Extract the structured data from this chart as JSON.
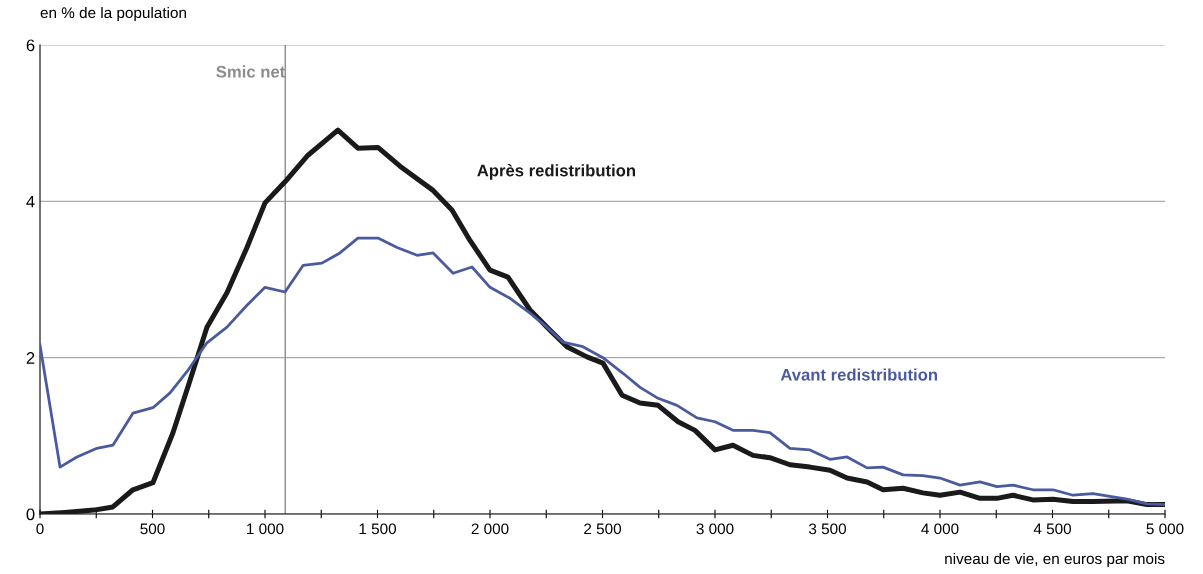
{
  "chart_data": {
    "type": "line",
    "ylabel": "en % de la population",
    "xlabel": "niveau de vie, en euros par mois",
    "xlim": [
      0,
      5000
    ],
    "ylim": [
      0,
      6
    ],
    "xticks": [
      0,
      {
        "value": 250,
        "label": null
      },
      500,
      {
        "value": 750,
        "label": null
      },
      {
        "value": 1000,
        "label": "1 000"
      },
      {
        "value": 1250,
        "label": null
      },
      {
        "value": 1500,
        "label": "1 500"
      },
      {
        "value": 1750,
        "label": null
      },
      {
        "value": 2000,
        "label": "2 000"
      },
      {
        "value": 2250,
        "label": null
      },
      {
        "value": 2500,
        "label": "2 500"
      },
      {
        "value": 2750,
        "label": null
      },
      {
        "value": 3000,
        "label": "3 000"
      },
      {
        "value": 3250,
        "label": null
      },
      {
        "value": 3500,
        "label": "3 500"
      },
      {
        "value": 3750,
        "label": null
      },
      {
        "value": 4000,
        "label": "4 000"
      },
      {
        "value": 4250,
        "label": null
      },
      {
        "value": 4500,
        "label": "4 500"
      },
      {
        "value": 4750,
        "label": null
      },
      {
        "value": 5000,
        "label": "5 000"
      }
    ],
    "yticks": [
      0,
      2,
      4,
      6
    ],
    "grid": "y",
    "legend": false,
    "marker": "none",
    "line_style": "solid",
    "ref_lines": [
      {
        "axis": "x",
        "value": 1090,
        "label": "Smic net",
        "color": "#8c8c8c"
      }
    ],
    "series": [
      {
        "name": "Après redistribution",
        "color": "#1a1a1a",
        "x": [
          0,
          110,
          240,
          324,
          413,
          502,
          591,
          667,
          742,
          831,
          920,
          1000,
          1089,
          1191,
          1324,
          1413,
          1502,
          1600,
          1747,
          1831,
          1911,
          2000,
          2080,
          2178,
          2267,
          2342,
          2431,
          2502,
          2587,
          2667,
          2747,
          2836,
          2911,
          3000,
          3080,
          3169,
          3244,
          3333,
          3422,
          3511,
          3587,
          3676,
          3747,
          3836,
          3924,
          4000,
          4089,
          4178,
          4253,
          4324,
          4413,
          4502,
          4591,
          4680,
          4831,
          4920,
          5000
        ],
        "values": [
          0,
          0.02,
          0.05,
          0.09,
          0.31,
          0.4,
          1.04,
          1.71,
          2.39,
          2.83,
          3.41,
          3.98,
          4.25,
          4.59,
          4.91,
          4.68,
          4.69,
          4.45,
          4.14,
          3.89,
          3.5,
          3.12,
          3.03,
          2.61,
          2.35,
          2.14,
          2.01,
          1.93,
          1.52,
          1.42,
          1.39,
          1.18,
          1.07,
          0.82,
          0.88,
          0.75,
          0.72,
          0.63,
          0.6,
          0.56,
          0.46,
          0.41,
          0.31,
          0.33,
          0.27,
          0.24,
          0.28,
          0.2,
          0.2,
          0.24,
          0.18,
          0.19,
          0.16,
          0.16,
          0.17,
          0.12,
          0.12
        ]
      },
      {
        "name": "Avant redistribution",
        "color": "#4a5a9e",
        "x": [
          0,
          89,
          164,
          253,
          324,
          413,
          502,
          578,
          653,
          742,
          831,
          920,
          1000,
          1089,
          1169,
          1253,
          1333,
          1413,
          1502,
          1587,
          1676,
          1747,
          1836,
          1920,
          2000,
          2089,
          2178,
          2253,
          2324,
          2413,
          2502,
          2591,
          2667,
          2747,
          2831,
          2920,
          3000,
          3080,
          3169,
          3244,
          3333,
          3422,
          3511,
          3587,
          3676,
          3747,
          3836,
          3924,
          4000,
          4089,
          4178,
          4253,
          4324,
          4413,
          4502,
          4591,
          4680,
          4769,
          4831,
          4920,
          5000
        ],
        "values": [
          2.16,
          0.6,
          0.73,
          0.84,
          0.88,
          1.29,
          1.36,
          1.55,
          1.82,
          2.19,
          2.39,
          2.67,
          2.9,
          2.84,
          3.18,
          3.21,
          3.34,
          3.53,
          3.53,
          3.41,
          3.31,
          3.34,
          3.08,
          3.16,
          2.9,
          2.76,
          2.57,
          2.39,
          2.2,
          2.14,
          2.0,
          1.8,
          1.62,
          1.48,
          1.39,
          1.23,
          1.18,
          1.07,
          1.07,
          1.04,
          0.84,
          0.82,
          0.7,
          0.73,
          0.59,
          0.6,
          0.5,
          0.49,
          0.46,
          0.37,
          0.41,
          0.35,
          0.37,
          0.31,
          0.31,
          0.24,
          0.26,
          0.22,
          0.19,
          0.13,
          0.12
        ]
      }
    ]
  }
}
